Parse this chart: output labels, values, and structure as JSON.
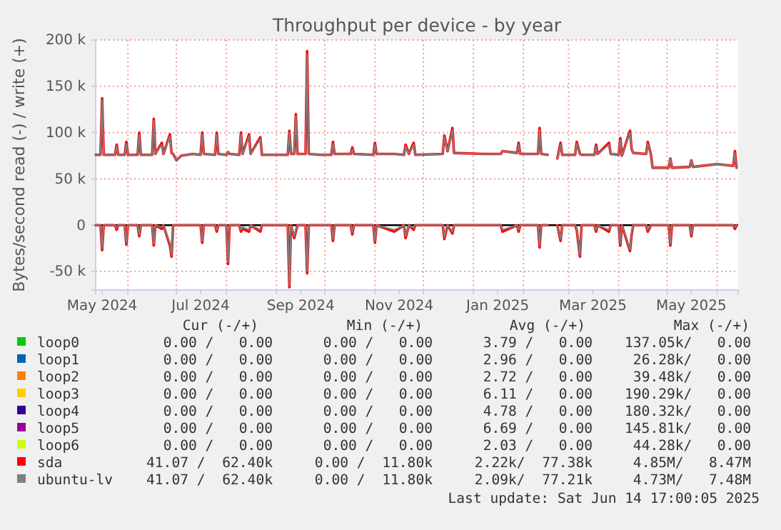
{
  "chart_data": {
    "type": "line",
    "title": "Throughput per device - by year",
    "ylabel": "Bytes/second read (-) / write (+)",
    "x": [
      "2024-05-12",
      "2024-05-15",
      "2024-05-16",
      "2024-05-17",
      "2024-05-24",
      "2024-05-25",
      "2024-05-26",
      "2024-05-30",
      "2024-05-31",
      "2024-06-01",
      "2024-06-07",
      "2024-06-08",
      "2024-06-09",
      "2024-06-16",
      "2024-06-17",
      "2024-06-18",
      "2024-06-22",
      "2024-06-23",
      "2024-06-27",
      "2024-06-28",
      "2024-06-29",
      "2024-07-01",
      "2024-07-04",
      "2024-07-11",
      "2024-07-16",
      "2024-07-17",
      "2024-07-18",
      "2024-07-25",
      "2024-07-26",
      "2024-07-27",
      "2024-08-01",
      "2024-08-02",
      "2024-08-03",
      "2024-08-09",
      "2024-08-10",
      "2024-08-11",
      "2024-08-15",
      "2024-08-16",
      "2024-08-22",
      "2024-08-23",
      "2024-08-30",
      "2024-09-08",
      "2024-09-09",
      "2024-09-10",
      "2024-09-12",
      "2024-09-13",
      "2024-09-14",
      "2024-09-19",
      "2024-09-20",
      "2024-09-21",
      "2024-09-28",
      "2024-10-05",
      "2024-10-06",
      "2024-10-07",
      "2024-10-17",
      "2024-10-18",
      "2024-10-19",
      "2024-10-31",
      "2024-11-01",
      "2024-11-02",
      "2024-11-13",
      "2024-11-19",
      "2024-11-20",
      "2024-11-22",
      "2024-11-25",
      "2024-11-26",
      "2024-12-13",
      "2024-12-14",
      "2024-12-16",
      "2024-12-19",
      "2024-12-20",
      "2025-01-07",
      "2025-01-18",
      "2025-01-19",
      "2025-01-28",
      "2025-01-29",
      "2025-01-30",
      "2025-02-10",
      "2025-02-11",
      "2025-02-12",
      "2025-02-16",
      "2025-02-19",
      "2025-02-22",
      "2025-02-24",
      "2025-02-25",
      "2025-03-05",
      "2025-03-06",
      "2025-03-08",
      "2025-03-09",
      "2025-03-17",
      "2025-03-18",
      "2025-03-19",
      "2025-03-26",
      "2025-03-27",
      "2025-04-01",
      "2025-04-02",
      "2025-04-03",
      "2025-04-08",
      "2025-04-09",
      "2025-04-10",
      "2025-04-18",
      "2025-04-19",
      "2025-04-21",
      "2025-04-22",
      "2025-05-02",
      "2025-05-03",
      "2025-05-04",
      "2025-05-15",
      "2025-05-16",
      "2025-05-17",
      "2025-06-01",
      "2025-06-11",
      "2025-06-12",
      "2025-06-13"
    ],
    "xlim": [
      "2024-05-12",
      "2025-06-14"
    ],
    "xticks": [
      {
        "value": "2024-05-16",
        "label": "May 2024"
      },
      {
        "value": "2024-06-01",
        "label": null
      },
      {
        "value": "2024-07-01",
        "label": null
      },
      {
        "value": "2024-07-16",
        "label": "Jul 2024"
      },
      {
        "value": "2024-08-01",
        "label": null
      },
      {
        "value": "2024-09-01",
        "label": null
      },
      {
        "value": "2024-09-16",
        "label": "Sep 2024"
      },
      {
        "value": "2024-10-01",
        "label": null
      },
      {
        "value": "2024-11-01",
        "label": null
      },
      {
        "value": "2024-11-16",
        "label": "Nov 2024"
      },
      {
        "value": "2024-12-01",
        "label": null
      },
      {
        "value": "2025-01-01",
        "label": null
      },
      {
        "value": "2025-01-16",
        "label": "Jan 2025"
      },
      {
        "value": "2025-02-01",
        "label": null
      },
      {
        "value": "2025-03-01",
        "label": null
      },
      {
        "value": "2025-03-16",
        "label": "Mar 2025"
      },
      {
        "value": "2025-04-01",
        "label": null
      },
      {
        "value": "2025-05-01",
        "label": null
      },
      {
        "value": "2025-05-16",
        "label": "May 2025"
      },
      {
        "value": "2025-06-01",
        "label": null
      }
    ],
    "ylim": [
      -70000,
      200000
    ],
    "yticks": [
      {
        "value": -50000,
        "label": "-50 k"
      },
      0,
      {
        "value": 50000,
        "label": "50 k"
      },
      {
        "value": 100000,
        "label": "100 k"
      },
      {
        "value": 150000,
        "label": "150 k"
      },
      {
        "value": 200000,
        "label": "200 k"
      }
    ],
    "grid": true,
    "legend": "bottom",
    "ref_lines": [
      {
        "axis": "y",
        "value": 0,
        "color": "#000000"
      }
    ],
    "series": [
      {
        "name": "loop0",
        "color": "#00cc00",
        "values": [
          null,
          null,
          null,
          null,
          null,
          null,
          null,
          null,
          null,
          null,
          null,
          null,
          null,
          null,
          null,
          null,
          null,
          null,
          null,
          null,
          null,
          null,
          null,
          null,
          null,
          null,
          null,
          null,
          null,
          null,
          null,
          null,
          null,
          null,
          null,
          null,
          null,
          null,
          null,
          null,
          null,
          null,
          null,
          null,
          null,
          null,
          null,
          null,
          null,
          null,
          null,
          null,
          null,
          null,
          null,
          null,
          null,
          null,
          null,
          null,
          null,
          null,
          null,
          null,
          null,
          null,
          null,
          null,
          null,
          null,
          null,
          null,
          null,
          null,
          null,
          null,
          null,
          null,
          null,
          null,
          null,
          null,
          null,
          null,
          null,
          null,
          null,
          null,
          null,
          null,
          null,
          null,
          null,
          null,
          null,
          null,
          null,
          null,
          null,
          null,
          null,
          null,
          null,
          null,
          null,
          null,
          null,
          null,
          null,
          null,
          null,
          null,
          null,
          null
        ]
      },
      {
        "name": "loop1",
        "color": "#0066b3",
        "values": [
          null,
          null,
          null,
          null,
          null,
          null,
          null,
          null,
          null,
          null,
          null,
          null,
          null,
          null,
          null,
          null,
          null,
          null,
          null,
          null,
          null,
          null,
          null,
          null,
          null,
          null,
          null,
          null,
          null,
          null,
          null,
          null,
          null,
          null,
          null,
          null,
          null,
          null,
          null,
          null,
          null,
          null,
          null,
          null,
          null,
          null,
          null,
          null,
          null,
          null,
          null,
          null,
          null,
          null,
          null,
          null,
          null,
          null,
          null,
          null,
          null,
          null,
          null,
          null,
          null,
          null,
          null,
          null,
          null,
          null,
          null,
          null,
          null,
          null,
          null,
          null,
          null,
          null,
          null,
          null,
          null,
          null,
          null,
          null,
          null,
          null,
          null,
          null,
          null,
          null,
          null,
          null,
          null,
          null,
          null,
          null,
          null,
          null,
          null,
          null,
          null,
          null,
          null,
          null,
          null,
          null,
          null,
          null,
          null,
          null,
          null,
          null,
          null,
          null
        ]
      },
      {
        "name": "loop2",
        "color": "#ff8000",
        "values": [
          null,
          null,
          null,
          null,
          null,
          null,
          null,
          null,
          null,
          null,
          null,
          null,
          null,
          null,
          null,
          null,
          null,
          null,
          null,
          null,
          null,
          null,
          null,
          null,
          null,
          null,
          null,
          null,
          null,
          null,
          null,
          null,
          null,
          null,
          null,
          null,
          null,
          null,
          null,
          null,
          null,
          null,
          null,
          null,
          null,
          null,
          null,
          null,
          null,
          null,
          null,
          null,
          null,
          null,
          null,
          null,
          null,
          null,
          null,
          null,
          null,
          null,
          null,
          null,
          null,
          null,
          null,
          null,
          null,
          null,
          null,
          null,
          null,
          null,
          null,
          null,
          null,
          null,
          null,
          null,
          null,
          null,
          null,
          null,
          null,
          null,
          null,
          null,
          null,
          null,
          null,
          null,
          null,
          null,
          null,
          null,
          null,
          null,
          null,
          null,
          null,
          null,
          null,
          null,
          null,
          null,
          null,
          null,
          null,
          null,
          null,
          null,
          null,
          null
        ]
      },
      {
        "name": "loop3",
        "color": "#ffcc00",
        "values": [
          null,
          null,
          null,
          null,
          null,
          null,
          null,
          null,
          null,
          null,
          null,
          null,
          null,
          null,
          null,
          null,
          null,
          null,
          null,
          null,
          null,
          null,
          null,
          null,
          null,
          null,
          null,
          null,
          null,
          null,
          null,
          null,
          null,
          null,
          null,
          null,
          null,
          null,
          null,
          null,
          null,
          null,
          null,
          null,
          null,
          null,
          null,
          null,
          null,
          null,
          null,
          null,
          null,
          null,
          null,
          null,
          null,
          null,
          null,
          null,
          null,
          null,
          null,
          null,
          null,
          null,
          null,
          null,
          null,
          null,
          null,
          null,
          null,
          null,
          null,
          null,
          null,
          null,
          null,
          null,
          null,
          null,
          null,
          null,
          null,
          null,
          null,
          null,
          null,
          null,
          null,
          null,
          null,
          null,
          null,
          null,
          null,
          null,
          null,
          null,
          null,
          null,
          null,
          null,
          null,
          null,
          null,
          null,
          null,
          null,
          null,
          null,
          null,
          null
        ]
      },
      {
        "name": "loop4",
        "color": "#330099",
        "values": [
          null,
          null,
          null,
          null,
          null,
          null,
          null,
          null,
          null,
          null,
          null,
          null,
          null,
          null,
          null,
          null,
          null,
          null,
          null,
          null,
          null,
          null,
          null,
          null,
          null,
          null,
          null,
          null,
          null,
          null,
          null,
          null,
          null,
          null,
          null,
          null,
          null,
          null,
          null,
          null,
          null,
          null,
          null,
          null,
          null,
          null,
          null,
          null,
          null,
          null,
          null,
          null,
          null,
          null,
          null,
          null,
          null,
          null,
          null,
          null,
          null,
          null,
          null,
          null,
          null,
          null,
          null,
          null,
          null,
          null,
          null,
          null,
          null,
          null,
          null,
          null,
          null,
          null,
          null,
          null,
          null,
          null,
          null,
          null,
          null,
          null,
          null,
          null,
          null,
          null,
          null,
          null,
          null,
          null,
          null,
          null,
          null,
          null,
          null,
          null,
          null,
          null,
          null,
          null,
          null,
          null,
          null,
          null,
          null,
          null,
          null,
          null,
          null,
          null
        ]
      },
      {
        "name": "loop5",
        "color": "#990099",
        "values": [
          null,
          null,
          null,
          null,
          null,
          null,
          null,
          null,
          null,
          null,
          null,
          null,
          null,
          null,
          null,
          null,
          null,
          null,
          null,
          null,
          null,
          null,
          null,
          null,
          null,
          null,
          null,
          null,
          null,
          null,
          null,
          null,
          null,
          null,
          null,
          null,
          null,
          null,
          null,
          null,
          null,
          null,
          null,
          null,
          null,
          null,
          null,
          null,
          null,
          null,
          null,
          null,
          null,
          null,
          null,
          null,
          null,
          null,
          null,
          null,
          null,
          null,
          null,
          null,
          null,
          null,
          null,
          null,
          null,
          null,
          null,
          null,
          null,
          null,
          null,
          null,
          null,
          null,
          null,
          null,
          null,
          null,
          null,
          null,
          null,
          null,
          null,
          null,
          null,
          null,
          null,
          null,
          null,
          null,
          null,
          null,
          null,
          null,
          null,
          null,
          null,
          null,
          null,
          null,
          null,
          null,
          null,
          null,
          null,
          null,
          null,
          null,
          null,
          null
        ]
      },
      {
        "name": "loop6",
        "color": "#ccff00",
        "values": [
          null,
          null,
          null,
          null,
          null,
          null,
          null,
          null,
          null,
          null,
          null,
          null,
          null,
          null,
          null,
          null,
          null,
          null,
          null,
          null,
          null,
          null,
          null,
          null,
          null,
          null,
          null,
          null,
          null,
          null,
          null,
          null,
          null,
          null,
          null,
          null,
          null,
          null,
          null,
          null,
          null,
          null,
          null,
          null,
          null,
          null,
          null,
          null,
          null,
          null,
          null,
          null,
          null,
          null,
          null,
          null,
          null,
          null,
          null,
          null,
          null,
          null,
          null,
          null,
          null,
          null,
          null,
          null,
          null,
          null,
          null,
          null,
          null,
          null,
          null,
          null,
          null,
          null,
          null,
          null,
          null,
          null,
          null,
          null,
          null,
          null,
          null,
          null,
          null,
          null,
          null,
          null,
          null,
          null,
          null,
          null,
          null,
          null,
          null,
          null,
          null,
          null,
          null,
          null,
          null,
          null,
          null,
          null,
          null,
          null,
          null,
          null,
          null,
          null
        ]
      },
      {
        "name": "sda",
        "color": "#ff0000",
        "values": [
          76000,
          76000,
          137000,
          76000,
          76000,
          87000,
          76000,
          76000,
          90000,
          76000,
          76000,
          100000,
          76000,
          76000,
          115000,
          77000,
          89000,
          77000,
          98000,
          78000,
          77000,
          70000,
          75000,
          77000,
          76000,
          100000,
          77000,
          76000,
          100000,
          77000,
          76000,
          79000,
          77000,
          76000,
          100000,
          77000,
          98000,
          77000,
          95000,
          76000,
          76000,
          76000,
          102000,
          77000,
          77000,
          120000,
          77000,
          77000,
          188000,
          77000,
          76000,
          76000,
          90000,
          77000,
          77000,
          84000,
          77000,
          76000,
          89000,
          77000,
          77000,
          76000,
          87000,
          77000,
          89000,
          76000,
          77000,
          97000,
          80000,
          105000,
          78000,
          77000,
          77000,
          80000,
          78000,
          89000,
          77000,
          77000,
          105000,
          77000,
          76000,
          null,
          72000,
          89000,
          76000,
          76000,
          90000,
          77000,
          76000,
          76000,
          87000,
          77000,
          89000,
          77000,
          76000,
          94000,
          75000,
          102000,
          82000,
          78000,
          77000,
          90000,
          76000,
          62000,
          62000,
          72000,
          62000,
          63000,
          70000,
          63000,
          66000,
          64000,
          80000,
          62000
        ]
      },
      {
        "color": "#ff0000",
        "values": [
          0,
          0,
          -27000,
          0,
          0,
          -5000,
          0,
          0,
          -21000,
          0,
          0,
          -12000,
          0,
          0,
          -22000,
          0,
          -4000,
          0,
          -22000,
          -34000,
          0,
          0,
          0,
          0,
          0,
          -19000,
          0,
          0,
          -7000,
          0,
          0,
          -42000,
          0,
          0,
          -7000,
          -4000,
          -7000,
          0,
          -7000,
          0,
          0,
          0,
          -67000,
          0,
          -14000,
          -7000,
          0,
          0,
          -52000,
          0,
          0,
          0,
          -17000,
          0,
          0,
          -10000,
          0,
          0,
          -19000,
          0,
          -7000,
          0,
          -14000,
          0,
          -5000,
          0,
          0,
          -15000,
          0,
          -9000,
          0,
          0,
          0,
          -7000,
          0,
          -7000,
          0,
          0,
          -24000,
          0,
          0,
          null,
          0,
          -17000,
          0,
          0,
          -5000,
          -34000,
          0,
          0,
          -7000,
          0,
          -7000,
          0,
          0,
          -22000,
          0,
          -28000,
          -10000,
          0,
          0,
          -7000,
          0,
          0,
          0,
          -22000,
          0,
          0,
          -12000,
          0,
          0,
          0,
          -4000,
          0
        ]
      },
      {
        "name": "ubuntu-lv",
        "color": "#808080",
        "values": [
          76000,
          76000,
          135000,
          76000,
          76000,
          85000,
          76000,
          76000,
          88000,
          76000,
          76000,
          98000,
          76000,
          76000,
          113000,
          77000,
          87000,
          77000,
          96000,
          78000,
          77000,
          70000,
          75000,
          77000,
          76000,
          98000,
          77000,
          76000,
          98000,
          77000,
          76000,
          79000,
          77000,
          76000,
          98000,
          77000,
          96000,
          77000,
          93000,
          76000,
          76000,
          76000,
          100000,
          77000,
          77000,
          118000,
          77000,
          77000,
          185000,
          77000,
          76000,
          76000,
          88000,
          77000,
          77000,
          82000,
          77000,
          76000,
          87000,
          77000,
          77000,
          76000,
          85000,
          77000,
          87000,
          76000,
          77000,
          95000,
          80000,
          103000,
          78000,
          77000,
          77000,
          80000,
          78000,
          87000,
          77000,
          77000,
          103000,
          77000,
          76000,
          null,
          72000,
          87000,
          76000,
          76000,
          88000,
          77000,
          76000,
          76000,
          85000,
          77000,
          87000,
          77000,
          76000,
          92000,
          75000,
          100000,
          82000,
          78000,
          77000,
          88000,
          76000,
          62000,
          62000,
          72000,
          62000,
          63000,
          70000,
          63000,
          66000,
          64000,
          78000,
          62000
        ]
      },
      {
        "color": "#808080",
        "values": [
          0,
          0,
          -25000,
          0,
          0,
          -3000,
          0,
          0,
          -19000,
          0,
          0,
          -10000,
          0,
          0,
          -20000,
          0,
          -2000,
          0,
          -20000,
          -32000,
          0,
          0,
          0,
          0,
          0,
          -17000,
          0,
          0,
          -5000,
          0,
          0,
          -40000,
          0,
          0,
          -5000,
          -2000,
          -5000,
          0,
          -5000,
          0,
          0,
          0,
          -65000,
          0,
          -12000,
          -5000,
          0,
          0,
          -50000,
          0,
          0,
          0,
          -15000,
          0,
          0,
          -8000,
          0,
          0,
          -17000,
          0,
          -5000,
          0,
          -12000,
          0,
          -3000,
          0,
          0,
          -13000,
          0,
          -7000,
          0,
          0,
          0,
          -5000,
          0,
          -5000,
          0,
          0,
          -22000,
          0,
          0,
          null,
          0,
          -15000,
          0,
          0,
          -3000,
          -32000,
          0,
          0,
          -5000,
          0,
          -5000,
          0,
          0,
          -20000,
          0,
          -26000,
          -8000,
          0,
          0,
          -5000,
          0,
          0,
          0,
          -20000,
          0,
          0,
          -10000,
          0,
          0,
          0,
          -2000,
          0
        ]
      }
    ],
    "annotations": [
      "Cur (-/+)",
      "Min (-/+)",
      "Avg (-/+)",
      "Max (-/+)",
      "0.00 /   0.00",
      "0.00 /   0.00",
      "3.79 /   0.00",
      "137.05k/   0.00",
      "0.00 /   0.00",
      "0.00 /   0.00",
      "2.96 /   0.00",
      "26.28k/   0.00",
      "0.00 /   0.00",
      "0.00 /   0.00",
      "2.72 /   0.00",
      "39.48k/   0.00",
      "0.00 /   0.00",
      "0.00 /   0.00",
      "6.11 /   0.00",
      "190.29k/   0.00",
      "0.00 /   0.00",
      "0.00 /   0.00",
      "4.78 /   0.00",
      "180.32k/   0.00",
      "0.00 /   0.00",
      "0.00 /   0.00",
      "6.69 /   0.00",
      "145.81k/   0.00",
      "0.00 /   0.00",
      "0.00 /   0.00",
      "2.03 /   0.00",
      "44.28k/   0.00",
      "41.07 /  62.40k",
      "0.00 /  11.80k",
      "2.22k/  77.38k",
      "4.85M/   8.47M",
      "41.07 /  62.40k",
      "0.00 /  11.80k",
      "2.09k/  77.21k",
      "4.73M/   7.48M",
      "Last update: Sat Jun 14 17:00:05 2025"
    ]
  }
}
